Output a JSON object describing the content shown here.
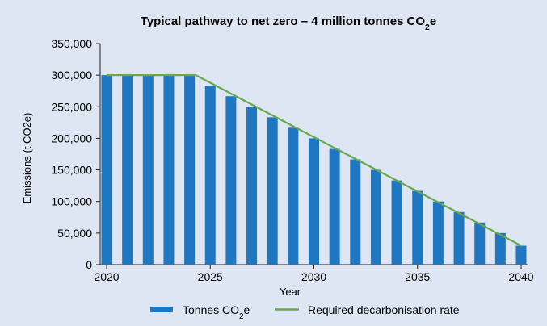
{
  "chart_data": {
    "type": "bar",
    "title": {
      "main": "Typical pathway to net zero – 4 million tonnes CO",
      "sub": "2",
      "tail": "e"
    },
    "xlabel": "Year",
    "ylabel": "Emissions (t CO2e)",
    "ylim": [
      0,
      350000
    ],
    "yticks": [
      0,
      50000,
      100000,
      150000,
      200000,
      250000,
      300000,
      350000
    ],
    "ytick_labels": [
      "0",
      "50,000",
      "100,000",
      "150,000",
      "200,000",
      "250,000",
      "300,000",
      "350,000"
    ],
    "xticks": [
      2020,
      2025,
      2030,
      2035,
      2040
    ],
    "x": [
      2020,
      2021,
      2022,
      2023,
      2024,
      2025,
      2026,
      2027,
      2028,
      2029,
      2030,
      2031,
      2032,
      2033,
      2034,
      2035,
      2036,
      2037,
      2038,
      2039,
      2040
    ],
    "series": [
      {
        "type": "bar",
        "legend": {
          "main": "Tonnes CO",
          "sub": "2",
          "tail": "e"
        },
        "color": "#1f77c2",
        "values": [
          300000,
          300000,
          300000,
          300000,
          300000,
          283300,
          266700,
          250000,
          233300,
          216700,
          200000,
          183300,
          166700,
          150000,
          133300,
          116700,
          100000,
          83300,
          66700,
          50000,
          30000
        ]
      },
      {
        "type": "line",
        "legend": {
          "main": "Required decarbonisation rate",
          "sub": "",
          "tail": ""
        },
        "color": "#6aa84f",
        "points": [
          [
            2020,
            300000
          ],
          [
            2024.3,
            300000
          ],
          [
            2040,
            30000
          ]
        ]
      }
    ],
    "legend_position": "bottom",
    "grid": false,
    "background": "#dde6f2"
  }
}
